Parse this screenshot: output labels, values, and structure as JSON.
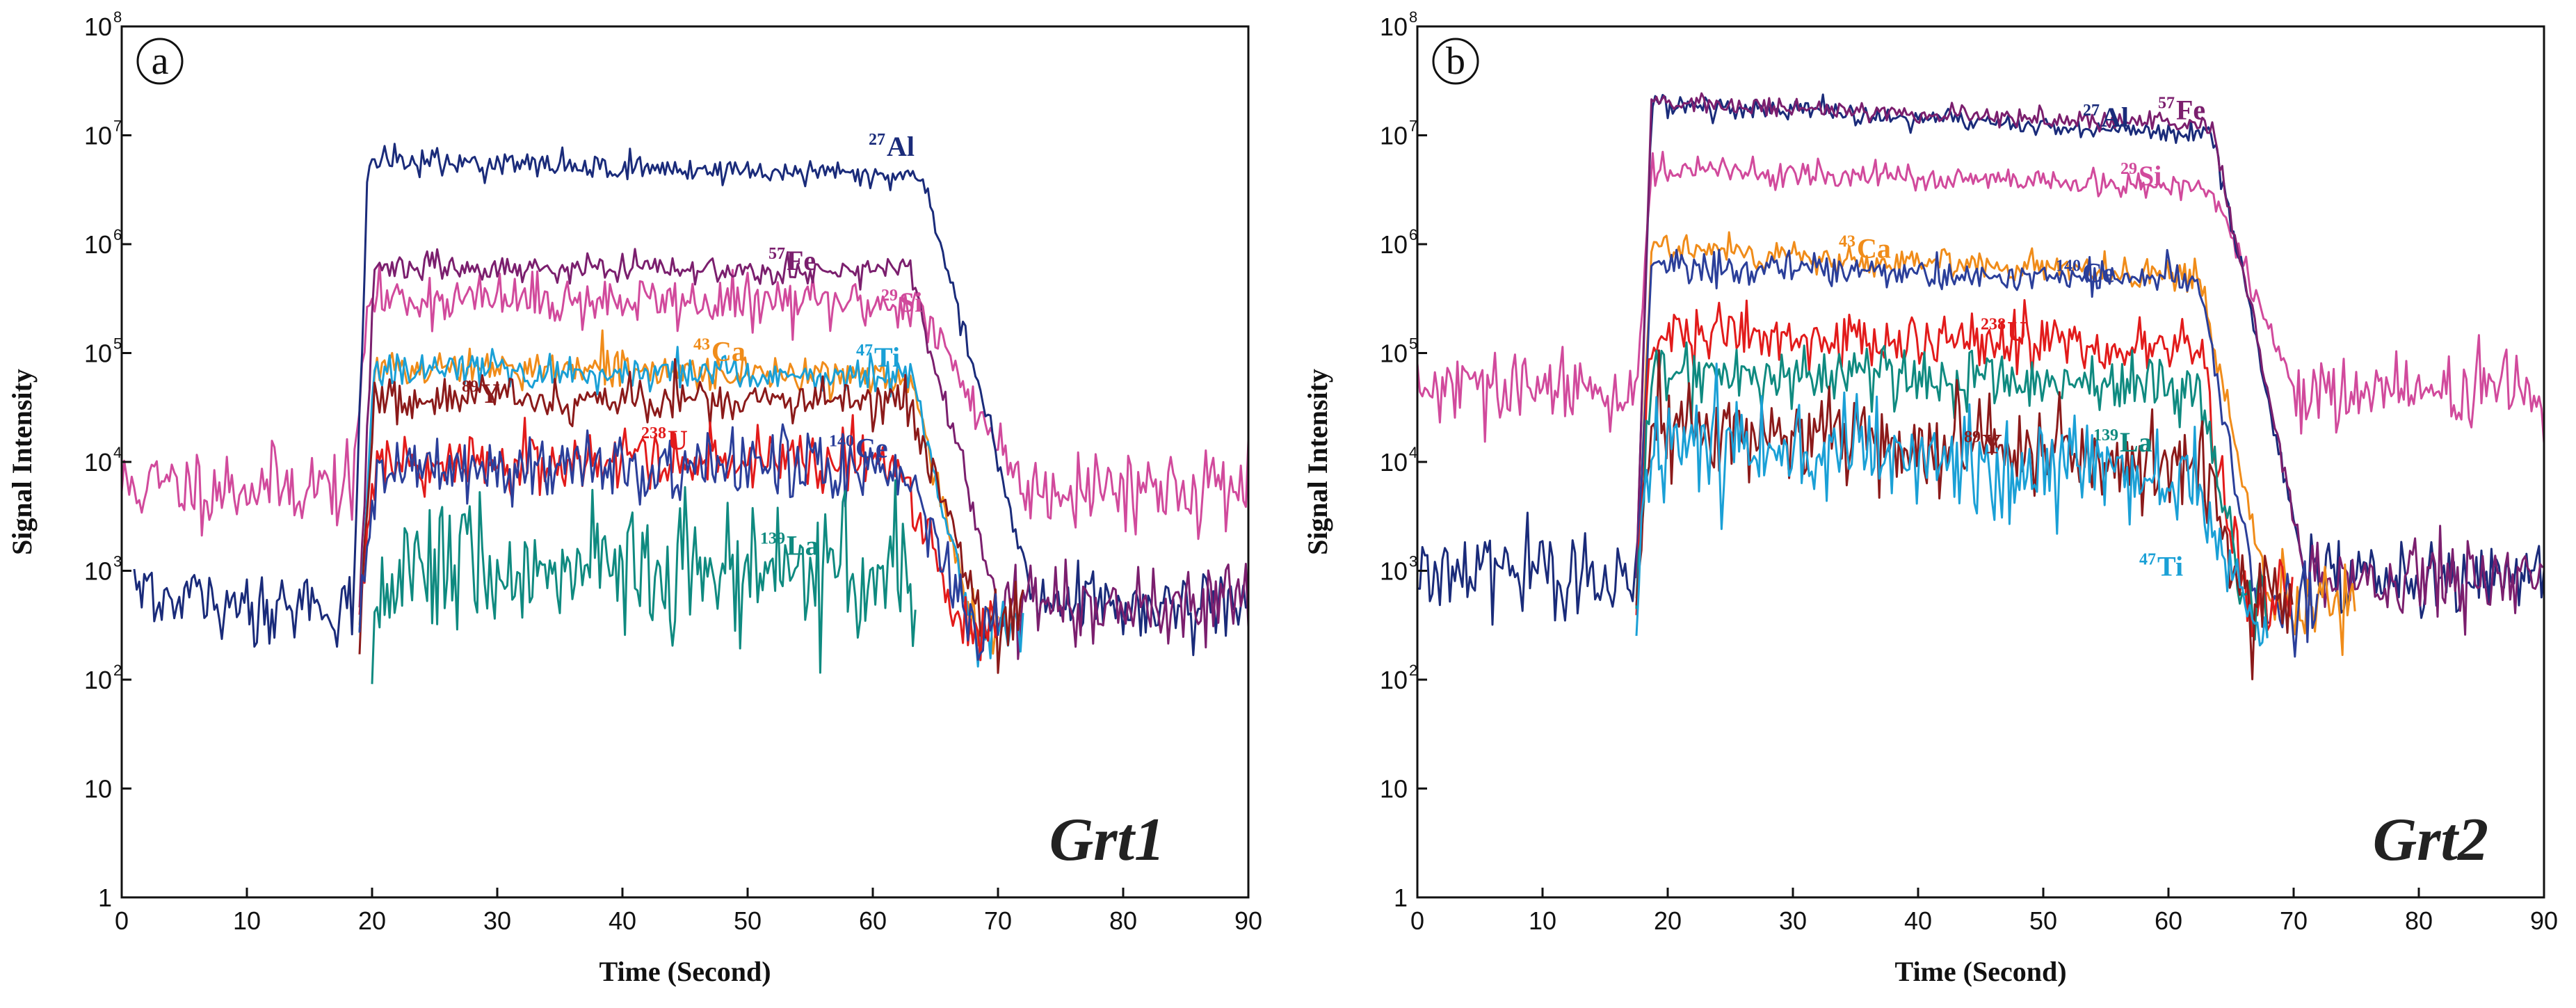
{
  "chart_data": [
    {
      "type": "line",
      "panel_tag": "a",
      "sample": "Grt1",
      "xlabel": "Time (Second)",
      "ylabel": "Signal Intensity",
      "xlim": [
        0,
        90
      ],
      "ylim": [
        1,
        100000000
      ],
      "yscale": "log",
      "x_ticks": [
        "0",
        "10",
        "20",
        "30",
        "40",
        "50",
        "60",
        "70",
        "80",
        "90"
      ],
      "y_ticks": [
        {
          "base": "1",
          "exp": ""
        },
        {
          "base": "10",
          "exp": ""
        },
        {
          "base": "10",
          "exp": "2"
        },
        {
          "base": "10",
          "exp": "3"
        },
        {
          "base": "10",
          "exp": "4"
        },
        {
          "base": "10",
          "exp": "5"
        },
        {
          "base": "10",
          "exp": "6"
        },
        {
          "base": "10",
          "exp": "7"
        },
        {
          "base": "10",
          "exp": "8"
        }
      ],
      "series": [
        {
          "name": "Si",
          "mass": "29",
          "color": "#d14a9c",
          "t0": 0,
          "t_on": 18.5,
          "t_off": 63.5,
          "t_end": 72,
          "t_max": 90,
          "background": 6000,
          "plateau": 320000,
          "plateau_end": 280000,
          "noise": 0.12,
          "label_x": 62,
          "label_y": 240000
        },
        {
          "name": "Al",
          "mass": "27",
          "color": "#1a2b7a",
          "t0": 1,
          "t_on": 18.5,
          "t_off": 64,
          "t_end": 73,
          "t_max": 90,
          "background": 500,
          "plateau": 6000000,
          "plateau_end": 4200000,
          "noise": 0.06,
          "label_x": 61,
          "label_y": 6500000
        },
        {
          "name": "Fe",
          "mass": "57",
          "color": "#7b1f6e",
          "t0": 19,
          "t_on": 19,
          "t_off": 63,
          "t_end": 70,
          "t_max": 90,
          "background": 500,
          "plateau": 620000,
          "plateau_end": 560000,
          "noise": 0.06,
          "label_x": 53,
          "label_y": 580000
        },
        {
          "name": "Ca",
          "mass": "43",
          "color": "#f08c1a",
          "t0": 19,
          "t_on": 19,
          "t_off": 63,
          "t_end": 68,
          "t_max": 70,
          "background": 300,
          "plateau": 75000,
          "plateau_end": 62000,
          "noise": 0.08,
          "label_x": 47,
          "label_y": 85000
        },
        {
          "name": "Ti",
          "mass": "47",
          "color": "#1aa0d6",
          "t0": 19,
          "t_on": 19,
          "t_off": 63,
          "t_end": 68,
          "t_max": 72,
          "background": 300,
          "plateau": 70000,
          "plateau_end": 62000,
          "noise": 0.08,
          "label_x": 60,
          "label_y": 75000
        },
        {
          "name": "Y",
          "mass": "89",
          "color": "#8b1a1a",
          "t0": 19,
          "t_on": 19,
          "t_off": 63,
          "t_end": 69,
          "t_max": 72,
          "background": 300,
          "plateau": 40000,
          "plateau_end": 35000,
          "noise": 0.1,
          "label_x": 28.5,
          "label_y": 35000
        },
        {
          "name": "U",
          "mass": "238",
          "color": "#e21b1b",
          "t0": 19,
          "t_on": 19,
          "t_off": 62,
          "t_end": 67,
          "t_max": 70,
          "background": 300,
          "plateau": 10000,
          "plateau_end": 9500,
          "noise": 0.15,
          "label_x": 43.5,
          "label_y": 13000
        },
        {
          "name": "Ce",
          "mass": "140",
          "color": "#2b3f9a",
          "t0": 19,
          "t_on": 19,
          "t_off": 63,
          "t_end": 68,
          "t_max": 70,
          "background": 300,
          "plateau": 9000,
          "plateau_end": 8500,
          "noise": 0.15,
          "label_x": 58.5,
          "label_y": 11000
        },
        {
          "name": "La",
          "mass": "139",
          "color": "#0f8a80",
          "t0": 20,
          "t_on": 20,
          "t_off": 62.5,
          "t_end": 63,
          "t_max": 63.5,
          "background": 200,
          "plateau": 1000,
          "plateau_end": 950,
          "noise": 0.32,
          "label_x": 53,
          "label_y": 1400
        }
      ]
    },
    {
      "type": "line",
      "panel_tag": "b",
      "sample": "Grt2",
      "xlabel": "Time (Second)",
      "ylabel": "Signal Intensity",
      "xlim": [
        0,
        90
      ],
      "ylim": [
        1,
        100000000
      ],
      "yscale": "log",
      "x_ticks": [
        "0",
        "10",
        "20",
        "30",
        "40",
        "50",
        "60",
        "70",
        "80",
        "90"
      ],
      "y_ticks": [
        {
          "base": "1",
          "exp": ""
        },
        {
          "base": "10",
          "exp": ""
        },
        {
          "base": "10",
          "exp": "2"
        },
        {
          "base": "10",
          "exp": "3"
        },
        {
          "base": "10",
          "exp": "4"
        },
        {
          "base": "10",
          "exp": "5"
        },
        {
          "base": "10",
          "exp": "6"
        },
        {
          "base": "10",
          "exp": "7"
        },
        {
          "base": "10",
          "exp": "8"
        }
      ],
      "series": [
        {
          "name": "Si",
          "mass": "29",
          "color": "#d14a9c",
          "t0": 0,
          "t_on": 17.5,
          "t_off": 63.5,
          "t_end": 70,
          "t_max": 90,
          "background": 45000,
          "plateau": 5000000,
          "plateau_end": 3200000,
          "noise": 0.06,
          "label_x": 57.5,
          "label_y": 3500000
        },
        {
          "name": "Al",
          "mass": "27",
          "color": "#1a2b7a",
          "t0": 0,
          "t_on": 17.5,
          "t_off": 63.5,
          "t_end": 71,
          "t_max": 90,
          "background": 900,
          "plateau": 20000000,
          "plateau_end": 10000000,
          "noise": 0.05,
          "label_x": 54.5,
          "label_y": 12000000
        },
        {
          "name": "Fe",
          "mass": "57",
          "color": "#7b1f6e",
          "t0": 17.5,
          "t_on": 17.5,
          "t_off": 63.5,
          "t_end": 71,
          "t_max": 90,
          "background": 900,
          "plateau": 21000000,
          "plateau_end": 12000000,
          "noise": 0.05,
          "label_x": 60.5,
          "label_y": 14000000
        },
        {
          "name": "Ca",
          "mass": "43",
          "color": "#f08c1a",
          "t0": 17.5,
          "t_on": 17.5,
          "t_off": 62.5,
          "t_end": 68,
          "t_max": 75,
          "background": 500,
          "plateau": 950000,
          "plateau_end": 500000,
          "noise": 0.07,
          "label_x": 35,
          "label_y": 750000
        },
        {
          "name": "Ce",
          "mass": "140",
          "color": "#2b3f9a",
          "t0": 17.5,
          "t_on": 17.5,
          "t_off": 62.5,
          "t_end": 67,
          "t_max": 72,
          "background": 500,
          "plateau": 650000,
          "plateau_end": 450000,
          "noise": 0.07,
          "label_x": 53,
          "label_y": 450000
        },
        {
          "name": "U",
          "mass": "238",
          "color": "#e21b1b",
          "t0": 17.5,
          "t_on": 17.5,
          "t_off": 62.5,
          "t_end": 66,
          "t_max": 70,
          "background": 500,
          "plateau": 150000,
          "plateau_end": 110000,
          "noise": 0.14,
          "label_x": 47,
          "label_y": 130000
        },
        {
          "name": "La",
          "mass": "139",
          "color": "#0f8a80",
          "t0": 17.5,
          "t_on": 17.5,
          "t_off": 62.5,
          "t_end": 66,
          "t_max": 68,
          "background": 500,
          "plateau": 65000,
          "plateau_end": 50000,
          "noise": 0.14,
          "label_x": 56,
          "label_y": 12500
        },
        {
          "name": "Y",
          "mass": "89",
          "color": "#8b1a1a",
          "t0": 17.5,
          "t_on": 17.5,
          "t_off": 62.5,
          "t_end": 66,
          "t_max": 70,
          "background": 500,
          "plateau": 22000,
          "plateau_end": 10000,
          "noise": 0.24,
          "label_x": 45,
          "label_y": 12000
        },
        {
          "name": "Ti",
          "mass": "47",
          "color": "#1aa0d6",
          "t0": 17.5,
          "t_on": 17.5,
          "t_off": 62,
          "t_end": 66,
          "t_max": 68,
          "background": 500,
          "plateau": 16000,
          "plateau_end": 7000,
          "noise": 0.24,
          "label_x": 59,
          "label_y": 900
        }
      ]
    }
  ]
}
